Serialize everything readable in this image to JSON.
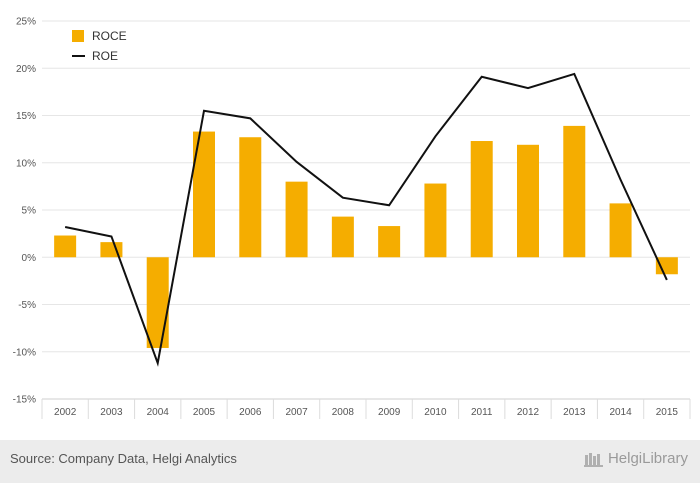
{
  "chart_data": {
    "type": "bar",
    "categories": [
      "2002",
      "2003",
      "2004",
      "2005",
      "2006",
      "2007",
      "2008",
      "2009",
      "2010",
      "2011",
      "2012",
      "2013",
      "2014",
      "2015"
    ],
    "series": [
      {
        "name": "ROCE",
        "type": "bar",
        "color": "#f5ad00",
        "values": [
          2.3,
          1.6,
          -9.6,
          13.3,
          12.7,
          8.0,
          4.3,
          3.3,
          7.8,
          12.3,
          11.9,
          13.9,
          5.7,
          -1.8
        ]
      },
      {
        "name": "ROE",
        "type": "line",
        "color": "#111111",
        "values": [
          3.2,
          2.2,
          -11.2,
          15.5,
          14.7,
          10.1,
          6.3,
          5.5,
          12.8,
          19.1,
          17.9,
          19.4,
          8.2,
          -2.4
        ]
      }
    ],
    "ylim": [
      -15,
      25
    ],
    "yticks": [
      -15,
      -10,
      -5,
      0,
      5,
      10,
      15,
      20,
      25
    ],
    "ytick_labels": [
      "-15%",
      "-10%",
      "-5%",
      "0%",
      "5%",
      "10%",
      "15%",
      "20%",
      "25%"
    ],
    "grid": true,
    "legend_position": "top-left"
  },
  "footer": {
    "source": "Source: Company Data, Helgi Analytics",
    "brand": "HelgiLibrary"
  }
}
